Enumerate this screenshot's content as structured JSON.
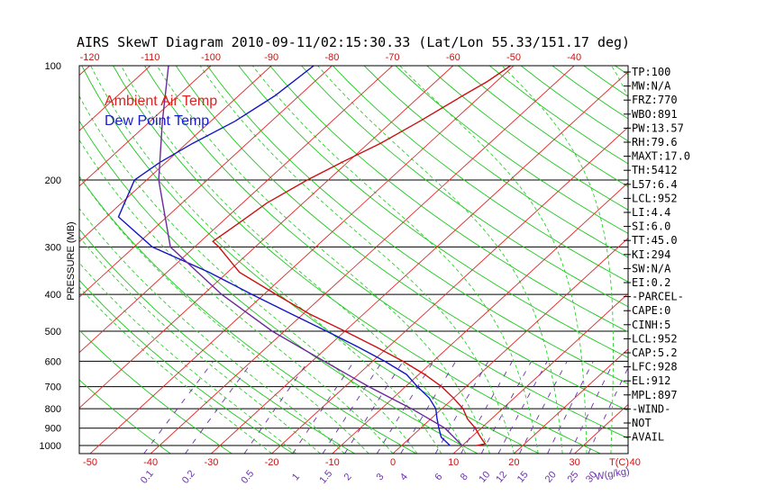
{
  "chart_data": {
    "type": "line",
    "title": "AIRS SkewT Diagram 2010-09-11/02:15:30.33 (Lat/Lon 55.33/151.17 deg)",
    "ylabel": "PRESSURE (MB)",
    "xlabel": "T(C)",
    "mixing_label": "W(g/kg)",
    "pressure_ticks": [
      100,
      200,
      300,
      400,
      500,
      600,
      700,
      800,
      900,
      1000
    ],
    "pressure_range": [
      100,
      1050
    ],
    "top_temp_ticks": [
      "-120",
      "-110",
      "-100",
      "-90",
      "-80",
      "-70",
      "-60",
      "-50",
      "-40"
    ],
    "bottom_temp_ticks": [
      "-50",
      "-40",
      "-30",
      "-20",
      "-10",
      "0",
      "10",
      "20",
      "30",
      "40"
    ],
    "mixing_ratio_ticks": [
      "0.1",
      "0.2",
      "0.5",
      "1",
      "1.5",
      "2",
      "3",
      "4",
      "6",
      "8",
      "10",
      "12",
      "15",
      "20",
      "25",
      "30"
    ],
    "legend": [
      {
        "name": "Ambient Air Temp",
        "color": "#e02020"
      },
      {
        "name": "Dew Point Temp",
        "color": "#1a1acc"
      }
    ],
    "series": [
      {
        "name": "Ambient Air Temp",
        "color": "#cc1010",
        "points": [
          [
            100,
            -50.5
          ],
          [
            110,
            -51.5
          ],
          [
            120,
            -53
          ],
          [
            140,
            -55.5
          ],
          [
            160,
            -58
          ],
          [
            180,
            -61
          ],
          [
            200,
            -63.5
          ],
          [
            230,
            -66
          ],
          [
            260,
            -67
          ],
          [
            290,
            -68
          ],
          [
            300,
            -66
          ],
          [
            350,
            -58
          ],
          [
            400,
            -48
          ],
          [
            450,
            -39
          ],
          [
            500,
            -30
          ],
          [
            550,
            -22
          ],
          [
            600,
            -15
          ],
          [
            650,
            -9
          ],
          [
            700,
            -4
          ],
          [
            750,
            0
          ],
          [
            800,
            3.5
          ],
          [
            850,
            6
          ],
          [
            900,
            9
          ],
          [
            940,
            11
          ],
          [
            970,
            12.5
          ],
          [
            990,
            13.5
          ],
          [
            1000,
            12.3
          ]
        ]
      },
      {
        "name": "Dew Point Temp",
        "color": "#1414c8",
        "points": [
          [
            100,
            -83
          ],
          [
            120,
            -84
          ],
          [
            140,
            -86
          ],
          [
            160,
            -89
          ],
          [
            180,
            -91
          ],
          [
            200,
            -92
          ],
          [
            250,
            -88
          ],
          [
            300,
            -77
          ],
          [
            350,
            -63
          ],
          [
            400,
            -52
          ],
          [
            450,
            -42
          ],
          [
            500,
            -33
          ],
          [
            550,
            -25
          ],
          [
            600,
            -18
          ],
          [
            650,
            -12
          ],
          [
            700,
            -8
          ],
          [
            750,
            -4
          ],
          [
            800,
            -1
          ],
          [
            850,
            1
          ],
          [
            900,
            3
          ],
          [
            950,
            5
          ],
          [
            1000,
            8
          ]
        ]
      },
      {
        "name": "Parcel",
        "color": "#6a2a9a",
        "points": [
          [
            100,
            -107
          ],
          [
            140,
            -98
          ],
          [
            200,
            -88
          ],
          [
            300,
            -74
          ],
          [
            400,
            -57
          ],
          [
            500,
            -42
          ],
          [
            600,
            -28
          ],
          [
            700,
            -16
          ],
          [
            800,
            -5
          ],
          [
            900,
            4
          ],
          [
            1000,
            10
          ]
        ]
      }
    ]
  },
  "stats": [
    "TP:100",
    "MW:N/A",
    "FRZ:770",
    "WBO:891",
    "PW:13.57",
    "RH:79.6",
    "MAXT:17.0",
    "TH:5412",
    "L57:6.4",
    "LCL:952",
    "LI:4.4",
    "SI:6.0",
    "TT:45.0",
    "KI:294",
    "SW:N/A",
    "EI:0.2",
    "-PARCEL-",
    "CAPE:0",
    "CINH:5",
    "LCL:952",
    "CAP:5.2",
    "LFC:928",
    "EL:912",
    "MPL:897",
    "-WIND-",
    "NOT",
    "AVAIL"
  ]
}
